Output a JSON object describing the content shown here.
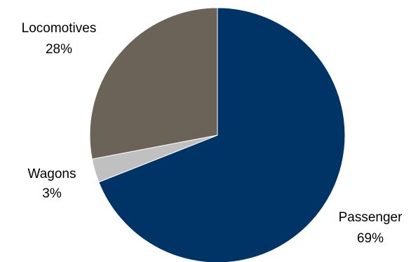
{
  "chart_data": {
    "type": "pie",
    "title": "",
    "slices": [
      {
        "label": "Passenger",
        "value": 69,
        "percent_label": "69%",
        "color": "#003366"
      },
      {
        "label": "Wagons",
        "value": 3,
        "percent_label": "3%",
        "color": "#c0c0c0"
      },
      {
        "label": "Locomotives",
        "value": 28,
        "percent_label": "28%",
        "color": "#6b6357"
      }
    ],
    "start": "12 o'clock",
    "direction": "clockwise",
    "legend": "none"
  }
}
